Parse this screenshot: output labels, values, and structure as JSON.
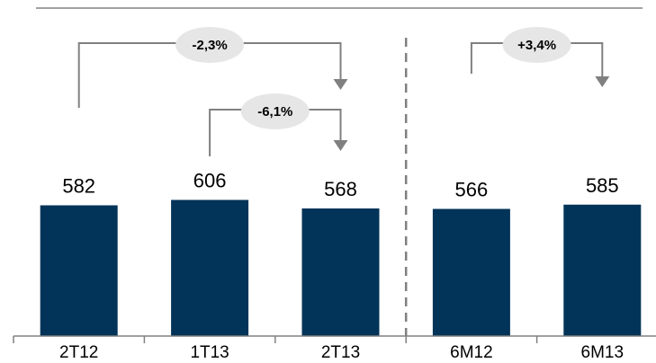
{
  "chart_data": {
    "type": "bar",
    "categories": [
      "2T12",
      "1T13",
      "2T13",
      "6M12",
      "6M13"
    ],
    "values": [
      582,
      606,
      568,
      566,
      585
    ],
    "value_labels": [
      "582",
      "606",
      "568",
      "566",
      "585"
    ],
    "title": "",
    "xlabel": "",
    "ylabel": "",
    "ylim": [
      0,
      700
    ],
    "grid": false,
    "legend": "none",
    "group_separator_after_index": 2,
    "annotations": [
      {
        "label": "-2,3%",
        "from": "2T12",
        "to": "2T13"
      },
      {
        "label": "-6,1%",
        "from": "1T13",
        "to": "2T13"
      },
      {
        "label": "+3,4%",
        "from": "6M12",
        "to": "6M13"
      }
    ]
  },
  "colors": {
    "bar": "#023358",
    "connector": "#808080",
    "bubble": "#e6e6e6",
    "axis": "#808080",
    "top_rule": "#808080",
    "separator": "#808080"
  }
}
